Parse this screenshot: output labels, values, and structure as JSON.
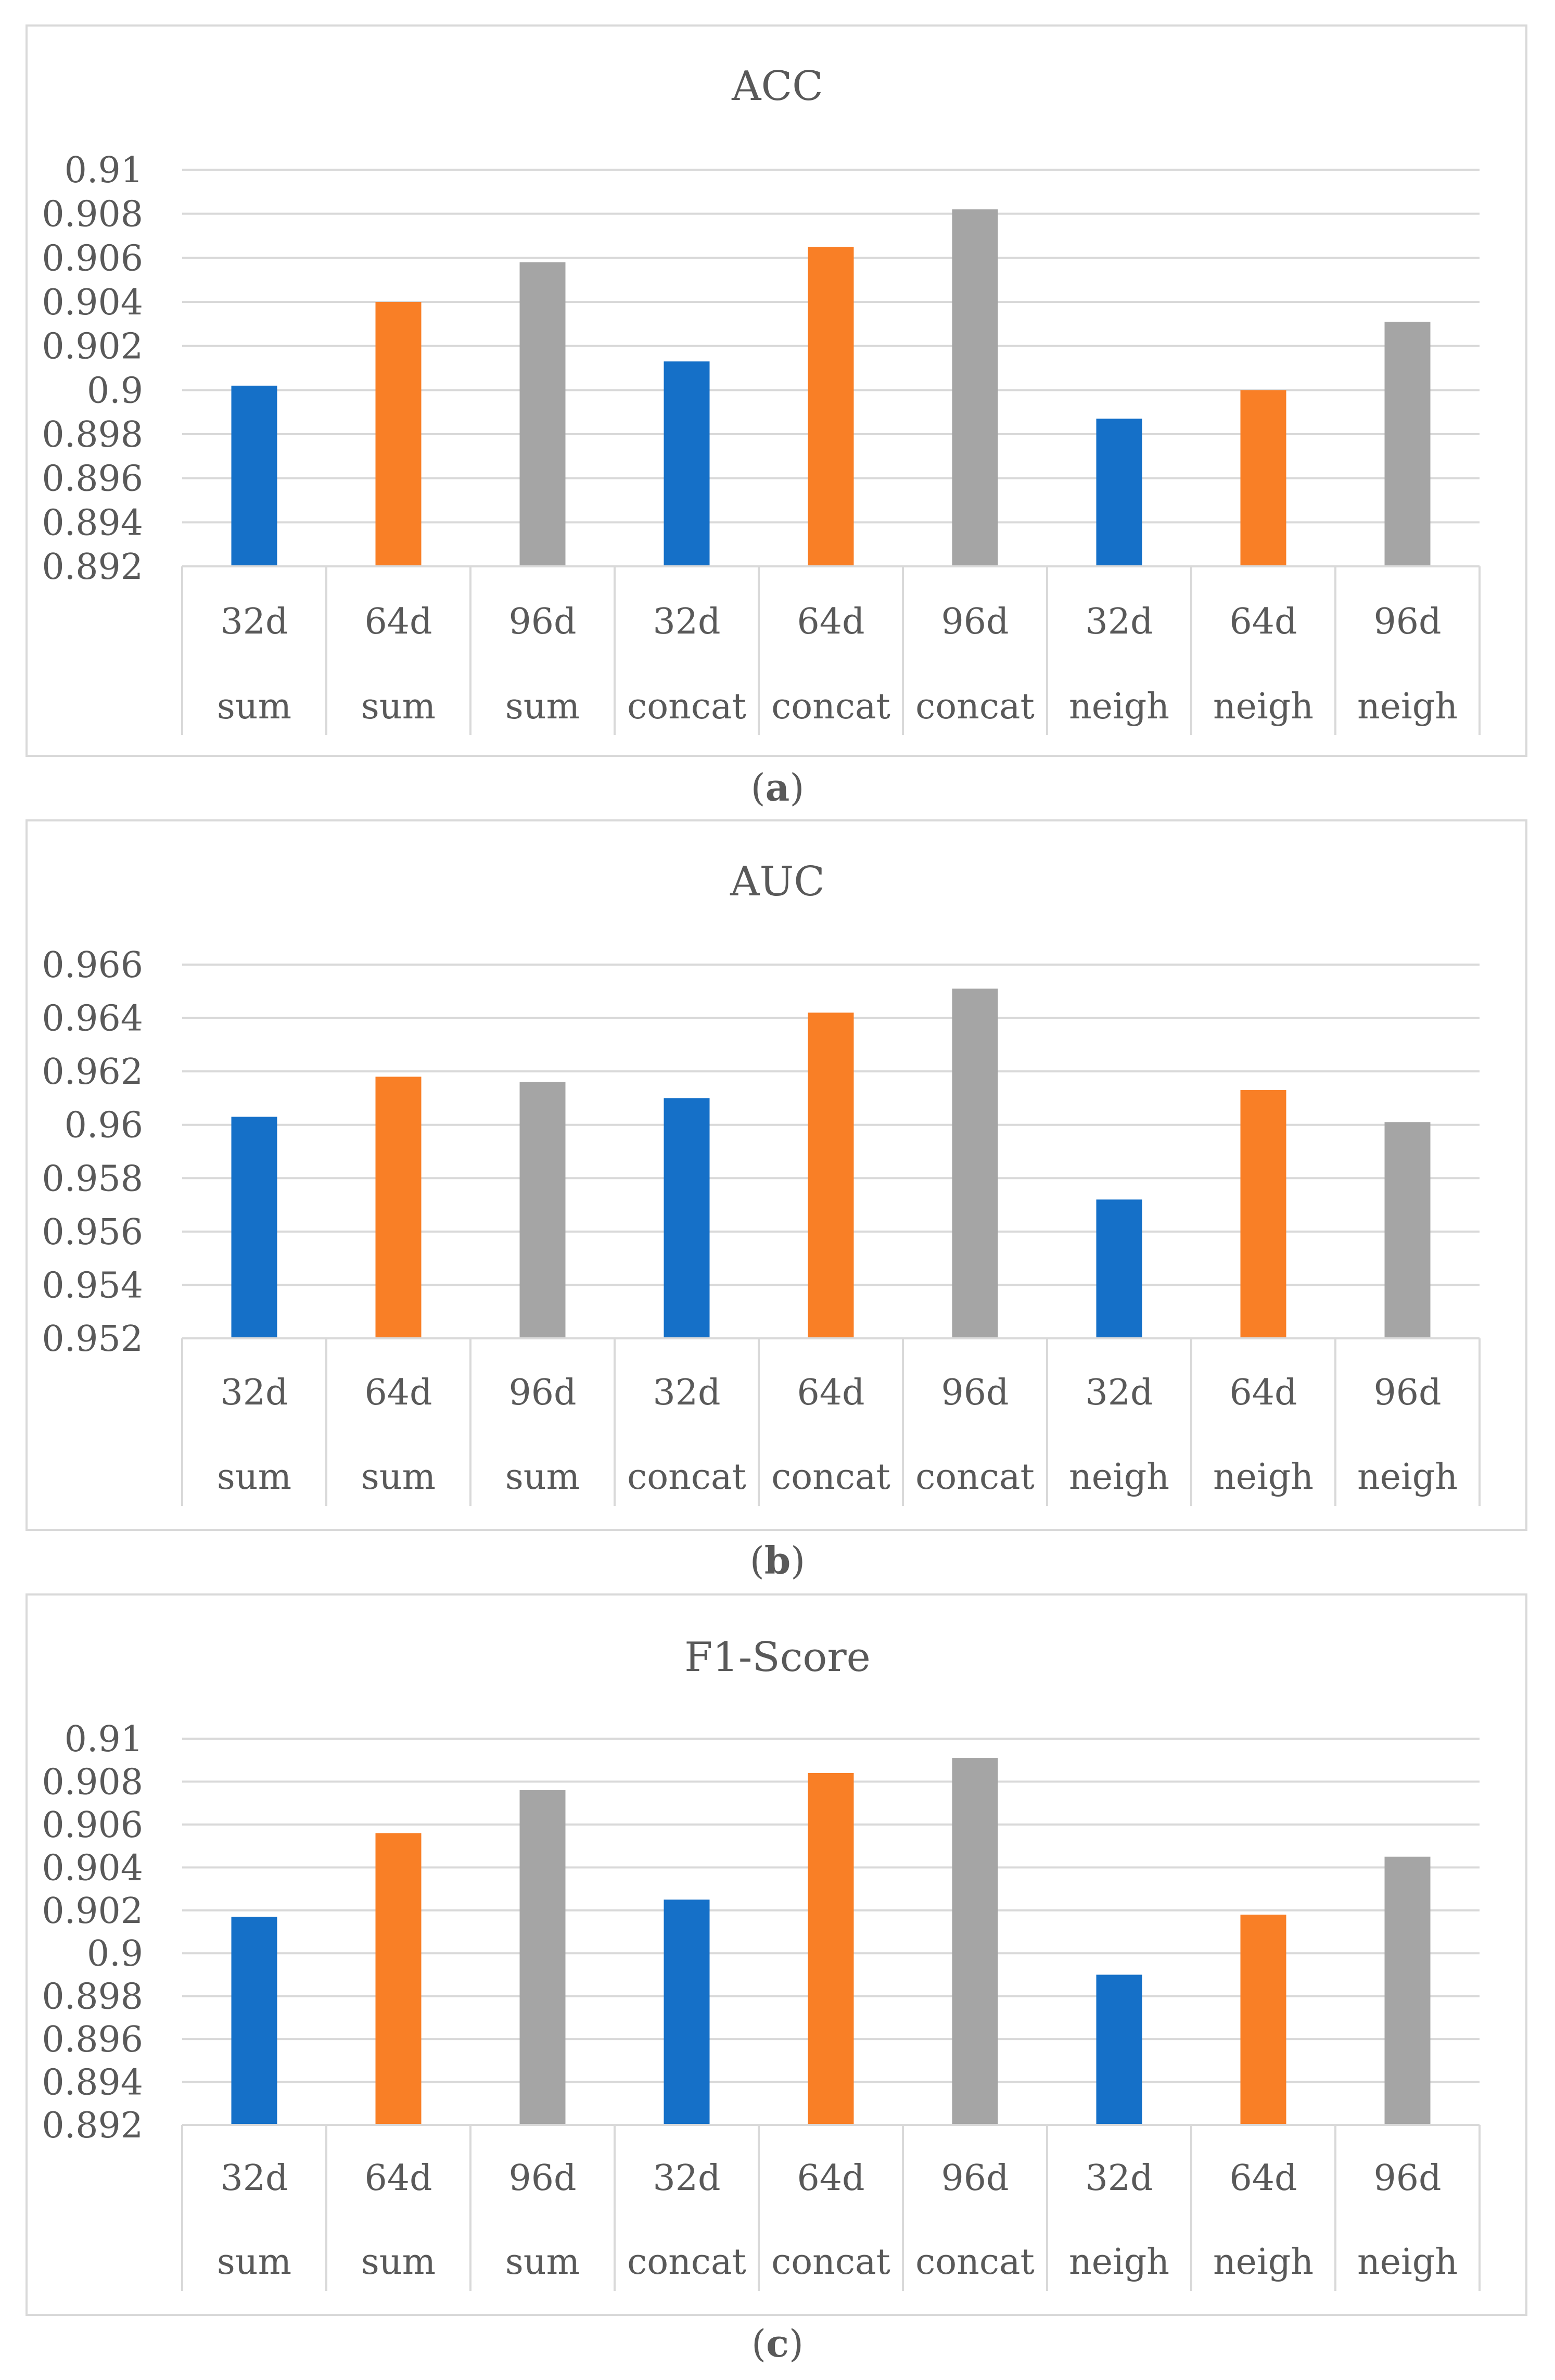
{
  "chart_data": [
    {
      "type": "bar",
      "title": "ACC",
      "caption": "a",
      "ylim": [
        0.892,
        0.91
      ],
      "yticks": [
        "0.892",
        "0.894",
        "0.896",
        "0.898",
        "0.9",
        "0.902",
        "0.904",
        "0.906",
        "0.908",
        "0.91"
      ],
      "ytick_values": [
        0.892,
        0.894,
        0.896,
        0.898,
        0.9,
        0.902,
        0.904,
        0.906,
        0.908,
        0.91
      ],
      "categories": [
        [
          "32d",
          "sum"
        ],
        [
          "64d",
          "sum"
        ],
        [
          "96d",
          "sum"
        ],
        [
          "32d",
          "concat"
        ],
        [
          "64d",
          "concat"
        ],
        [
          "96d",
          "concat"
        ],
        [
          "32d",
          "neigh"
        ],
        [
          "64d",
          "neigh"
        ],
        [
          "96d",
          "neigh"
        ]
      ],
      "values": [
        0.9002,
        0.904,
        0.9058,
        0.9013,
        0.9065,
        0.9082,
        0.8987,
        0.9,
        0.9031
      ],
      "colors": [
        "#1570c8",
        "#f97f26",
        "#a5a5a5",
        "#1570c8",
        "#f97f26",
        "#a5a5a5",
        "#1570c8",
        "#f97f26",
        "#a5a5a5"
      ]
    },
    {
      "type": "bar",
      "title": "AUC",
      "caption": "b",
      "ylim": [
        0.952,
        0.966
      ],
      "yticks": [
        "0.952",
        "0.954",
        "0.956",
        "0.958",
        "0.96",
        "0.962",
        "0.964",
        "0.966"
      ],
      "ytick_values": [
        0.952,
        0.954,
        0.956,
        0.958,
        0.96,
        0.962,
        0.964,
        0.966
      ],
      "categories": [
        [
          "32d",
          "sum"
        ],
        [
          "64d",
          "sum"
        ],
        [
          "96d",
          "sum"
        ],
        [
          "32d",
          "concat"
        ],
        [
          "64d",
          "concat"
        ],
        [
          "96d",
          "concat"
        ],
        [
          "32d",
          "neigh"
        ],
        [
          "64d",
          "neigh"
        ],
        [
          "96d",
          "neigh"
        ]
      ],
      "values": [
        0.9603,
        0.9618,
        0.9616,
        0.961,
        0.9642,
        0.9651,
        0.9572,
        0.9613,
        0.9601
      ],
      "colors": [
        "#1570c8",
        "#f97f26",
        "#a5a5a5",
        "#1570c8",
        "#f97f26",
        "#a5a5a5",
        "#1570c8",
        "#f97f26",
        "#a5a5a5"
      ]
    },
    {
      "type": "bar",
      "title": "F1-Score",
      "caption": "c",
      "ylim": [
        0.892,
        0.91
      ],
      "yticks": [
        "0.892",
        "0.894",
        "0.896",
        "0.898",
        "0.9",
        "0.902",
        "0.904",
        "0.906",
        "0.908",
        "0.91"
      ],
      "ytick_values": [
        0.892,
        0.894,
        0.896,
        0.898,
        0.9,
        0.902,
        0.904,
        0.906,
        0.908,
        0.91
      ],
      "categories": [
        [
          "32d",
          "sum"
        ],
        [
          "64d",
          "sum"
        ],
        [
          "96d",
          "sum"
        ],
        [
          "32d",
          "concat"
        ],
        [
          "64d",
          "concat"
        ],
        [
          "96d",
          "concat"
        ],
        [
          "32d",
          "neigh"
        ],
        [
          "64d",
          "neigh"
        ],
        [
          "96d",
          "neigh"
        ]
      ],
      "values": [
        0.9017,
        0.9056,
        0.9076,
        0.9025,
        0.9084,
        0.9091,
        0.899,
        0.9018,
        0.9045
      ],
      "colors": [
        "#1570c8",
        "#f97f26",
        "#a5a5a5",
        "#1570c8",
        "#f97f26",
        "#a5a5a5",
        "#1570c8",
        "#f97f26",
        "#a5a5a5"
      ]
    }
  ]
}
